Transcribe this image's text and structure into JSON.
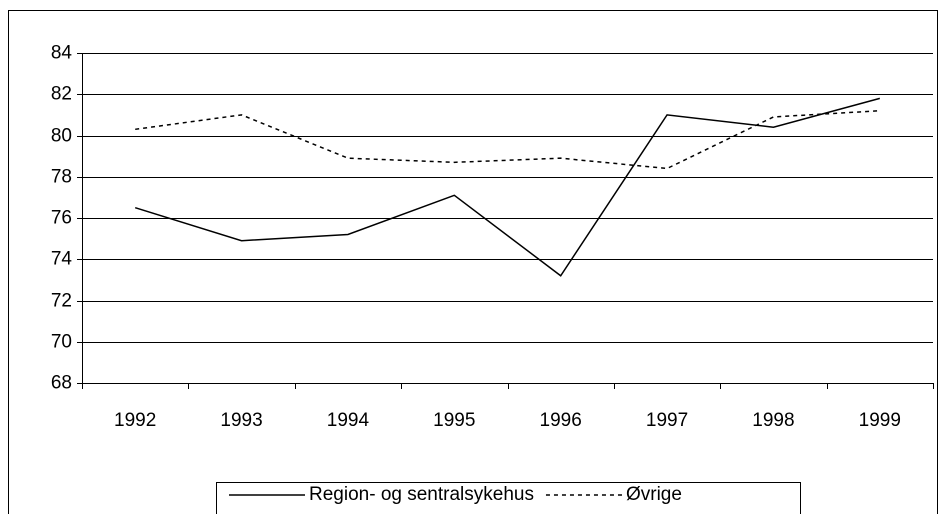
{
  "chart_data": {
    "type": "line",
    "categories": [
      "1992",
      "1993",
      "1994",
      "1995",
      "1996",
      "1997",
      "1998",
      "1999"
    ],
    "series": [
      {
        "name": "Region- og sentralsykehus",
        "color": "#000000",
        "dash": "solid",
        "values": [
          76.5,
          74.9,
          75.2,
          77.1,
          73.2,
          81.0,
          80.4,
          81.8
        ]
      },
      {
        "name": "Øvrige",
        "color": "#000000",
        "dash": "dotted",
        "values": [
          80.3,
          81.0,
          78.9,
          78.7,
          78.9,
          78.4,
          80.9,
          81.2
        ]
      }
    ],
    "ylim": [
      68,
      84
    ],
    "yticks": [
      68,
      70,
      72,
      74,
      76,
      78,
      80,
      82,
      84
    ],
    "grid": true,
    "legend": "bottom"
  }
}
